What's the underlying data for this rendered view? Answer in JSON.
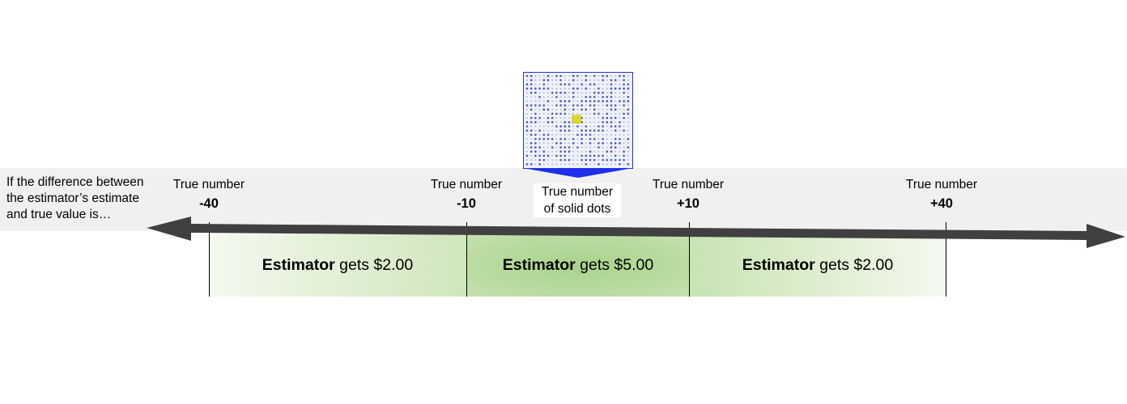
{
  "intro_text": "If the difference between\nthe estimator’s estimate\nand true value is…",
  "markers": [
    {
      "label": "True number",
      "value": "-40"
    },
    {
      "label": "True number",
      "value": "-10"
    },
    {
      "label": "True number",
      "value": "+10"
    },
    {
      "label": "True number",
      "value": "+40"
    }
  ],
  "center_label": "True number\nof solid dots",
  "zones": [
    {
      "role": "Estimator",
      "text": " gets $2.00"
    },
    {
      "role": "Estimator",
      "text": " gets $5.00"
    },
    {
      "role": "Estimator",
      "text": " gets $2.00"
    }
  ],
  "colors": {
    "axis": "#404040",
    "pointer": "#1f2ee8",
    "dot_panel_border": "#2a33c8",
    "dot": "#4b55b8",
    "highlight": "#d9d71a",
    "zone_center": "#a9d38c",
    "zone_edge": "#f4f9ee",
    "band": "#f0f0f0"
  }
}
